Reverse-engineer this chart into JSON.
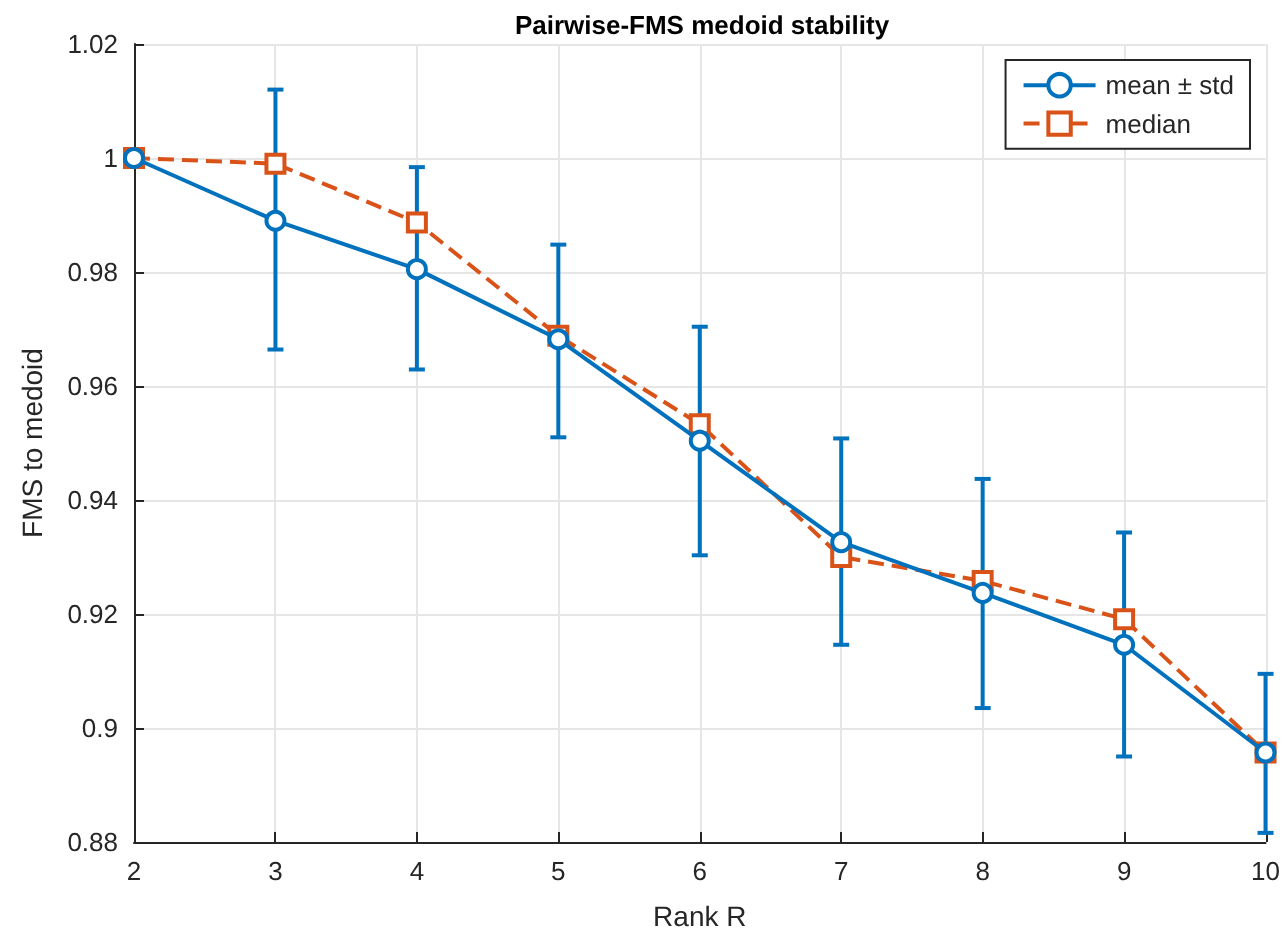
{
  "chart_data": {
    "type": "line",
    "title": "Pairwise-FMS medoid stability",
    "xlabel": "Rank R",
    "ylabel": "FMS to medoid",
    "x": [
      2,
      3,
      4,
      5,
      6,
      7,
      8,
      9,
      10
    ],
    "series": [
      {
        "name": "mean ± std",
        "color": "#0072bd",
        "marker": "circle",
        "line_style": "solid",
        "values": [
          1.0,
          0.989,
          0.9805,
          0.9682,
          0.9504,
          0.9326,
          0.9237,
          0.9146,
          0.8957
        ],
        "errors": [
          null,
          [
            0.9664,
            1.012
          ],
          [
            0.9629,
            0.9984
          ],
          [
            0.951,
            0.9848
          ],
          [
            0.9303,
            0.9704
          ],
          [
            0.9146,
            0.9508
          ],
          [
            0.9035,
            0.9437
          ],
          [
            0.895,
            0.9343
          ],
          [
            0.8816,
            0.9095
          ]
        ]
      },
      {
        "name": "median",
        "color": "#d95319",
        "marker": "square",
        "line_style": "dashed",
        "values": [
          1.0,
          0.999,
          0.9887,
          0.9688,
          0.9533,
          0.93,
          0.9258,
          0.9191,
          0.8957
        ]
      }
    ],
    "xlim": [
      2,
      10
    ],
    "xticks": [
      2,
      3,
      4,
      5,
      6,
      7,
      8,
      9,
      10
    ],
    "ylim": [
      0.88,
      1.02
    ],
    "yticks": [
      0.88,
      0.9,
      0.92,
      0.94,
      0.96,
      0.98,
      1,
      1.02
    ],
    "grid": true,
    "legend": "top right"
  }
}
